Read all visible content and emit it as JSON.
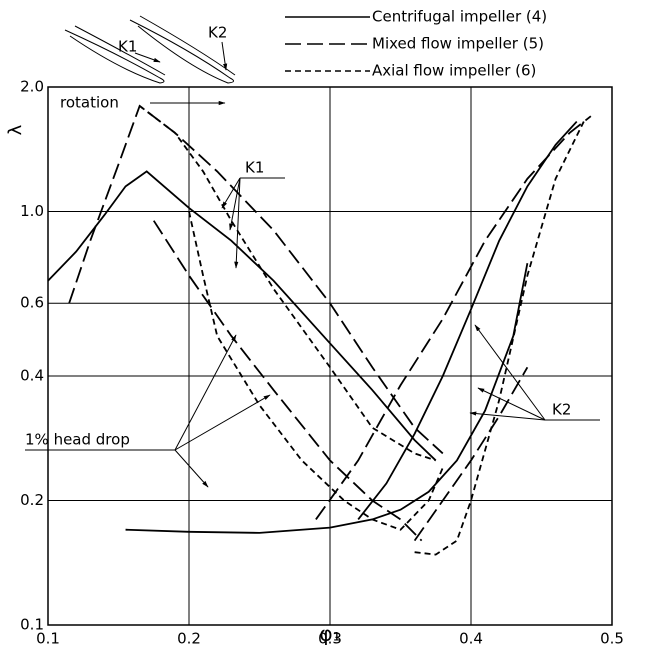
{
  "chart_data": {
    "type": "line",
    "x_label": "φ₁",
    "y_label": "λ",
    "xlim": [
      0.1,
      0.5
    ],
    "xticks": [
      0.1,
      0.2,
      0.3,
      0.4,
      0.5
    ],
    "ylim": [
      0.1,
      2.0
    ],
    "log_y": true,
    "yticks": [
      0.1,
      0.2,
      0.4,
      0.6,
      {
        "value": 1.0,
        "label": "1.0"
      },
      {
        "value": 2.0,
        "label": "2.0"
      }
    ],
    "grid": true,
    "series": [
      {
        "name": "Centrifugal impeller (4)",
        "color": "#000000",
        "linestyle": "solid",
        "lines": [
          {
            "x": [
              0.1,
              0.12,
              0.14,
              0.155,
              0.17,
              0.2,
              0.23,
              0.26,
              0.3,
              0.33,
              0.36,
              0.375
            ],
            "values": [
              0.68,
              0.8,
              0.98,
              1.15,
              1.25,
              1.02,
              0.85,
              0.68,
              0.48,
              0.37,
              0.28,
              0.25
            ]
          },
          {
            "x": [
              0.155,
              0.2,
              0.25,
              0.3,
              0.33,
              0.35,
              0.37,
              0.39,
              0.41,
              0.43,
              0.44
            ],
            "values": [
              0.17,
              0.168,
              0.167,
              0.172,
              0.18,
              0.19,
              0.21,
              0.25,
              0.33,
              0.5,
              0.75
            ]
          },
          {
            "x": [
              0.32,
              0.34,
              0.36,
              0.38,
              0.4,
              0.42,
              0.44,
              0.46,
              0.475
            ],
            "values": [
              0.18,
              0.22,
              0.29,
              0.4,
              0.58,
              0.85,
              1.15,
              1.45,
              1.65
            ]
          }
        ]
      },
      {
        "name": "Mixed flow impeller (5)",
        "color": "#000000",
        "linestyle": "long-dash",
        "lines": [
          {
            "x": [
              0.115,
              0.13,
              0.15,
              0.165,
              0.19,
              0.22,
              0.26,
              0.3,
              0.33,
              0.36,
              0.38
            ],
            "values": [
              0.6,
              0.85,
              1.3,
              1.8,
              1.55,
              1.25,
              0.9,
              0.6,
              0.42,
              0.3,
              0.26
            ]
          },
          {
            "x": [
              0.175,
              0.2,
              0.23,
              0.26,
              0.3,
              0.33,
              0.35,
              0.365
            ],
            "values": [
              0.95,
              0.7,
              0.5,
              0.37,
              0.25,
              0.2,
              0.18,
              0.16
            ]
          },
          {
            "x": [
              0.29,
              0.32,
              0.35,
              0.38,
              0.41,
              0.44,
              0.47,
              0.485
            ],
            "values": [
              0.18,
              0.25,
              0.38,
              0.55,
              0.85,
              1.2,
              1.55,
              1.7
            ]
          },
          {
            "x": [
              0.36,
              0.38,
              0.4,
              0.42,
              0.44
            ],
            "values": [
              0.16,
              0.2,
              0.25,
              0.32,
              0.42
            ]
          }
        ]
      },
      {
        "name": "Axial flow impeller (6)",
        "color": "#000000",
        "linestyle": "short-dash",
        "lines": [
          {
            "x": [
              0.165,
              0.19,
              0.21,
              0.23,
              0.26,
              0.3,
              0.33,
              0.36,
              0.375
            ],
            "values": [
              1.8,
              1.55,
              1.25,
              0.95,
              0.65,
              0.42,
              0.3,
              0.26,
              0.25
            ]
          },
          {
            "x": [
              0.2,
              0.21,
              0.22,
              0.25,
              0.28,
              0.31,
              0.33,
              0.35,
              0.37,
              0.38
            ],
            "values": [
              1.0,
              0.7,
              0.5,
              0.34,
              0.25,
              0.2,
              0.18,
              0.17,
              0.2,
              0.24
            ]
          },
          {
            "x": [
              0.36,
              0.375,
              0.39,
              0.4,
              0.42,
              0.44,
              0.46,
              0.48
            ],
            "values": [
              0.15,
              0.148,
              0.16,
              0.2,
              0.35,
              0.7,
              1.2,
              1.65
            ]
          }
        ]
      }
    ],
    "annotations": [
      "K1",
      "K2",
      "rotation",
      "K1",
      "K2",
      "1% head drop"
    ]
  }
}
